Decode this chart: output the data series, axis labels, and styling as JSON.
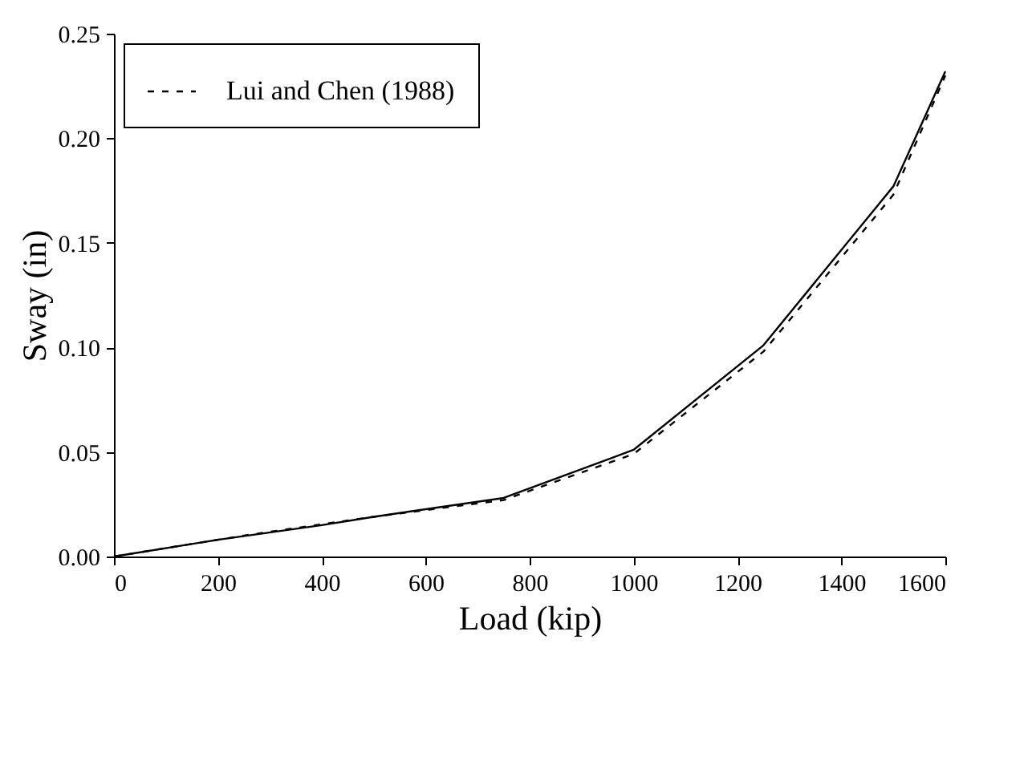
{
  "chart_data": {
    "type": "line",
    "xlabel": "Load (kip)",
    "ylabel": "Sway (in)",
    "xlim": [
      0,
      1600
    ],
    "xticks": [
      0,
      200,
      400,
      600,
      800,
      1000,
      1200,
      1400,
      1600
    ],
    "ylim": [
      0,
      0.25
    ],
    "yticks": [
      {
        "value": 0,
        "label": "0.00"
      },
      {
        "value": 0.05,
        "label": "0.05"
      },
      {
        "value": 0.1,
        "label": "0.10"
      },
      {
        "value": 0.15,
        "label": "0.15"
      },
      {
        "value": 0.2,
        "label": "0.20"
      },
      {
        "value": 0.25,
        "label": "0.25"
      }
    ],
    "grid": false,
    "legend": "top left",
    "marker": "none",
    "series": [
      {
        "name": "Lui and Chen (1988)",
        "color": "#000000",
        "line_style": "dashed",
        "x": [
          0,
          250,
          500,
          750,
          1000,
          1250,
          1500,
          1600
        ],
        "values": [
          0,
          0.01,
          0.019,
          0.027,
          0.049,
          0.098,
          0.173,
          0.23
        ]
      },
      {
        "color": "#000000",
        "line_style": "solid",
        "x": [
          0,
          200,
          400,
          500,
          750,
          1000,
          1250,
          1500,
          1600
        ],
        "values": [
          0,
          0.008,
          0.015,
          0.019,
          0.028,
          0.051,
          0.101,
          0.177,
          0.232
        ]
      }
    ]
  }
}
